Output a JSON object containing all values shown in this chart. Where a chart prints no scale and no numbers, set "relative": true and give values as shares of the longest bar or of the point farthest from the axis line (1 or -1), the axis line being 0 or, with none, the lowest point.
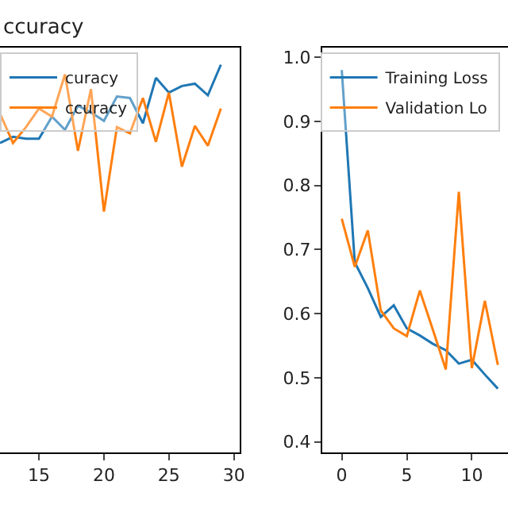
{
  "chart_data": [
    {
      "type": "line",
      "title": "ccuracy",
      "relative": true,
      "x": [
        12,
        13,
        14,
        15,
        16,
        17,
        18,
        19,
        20,
        21,
        22,
        23,
        24,
        25,
        26,
        27,
        28,
        29
      ],
      "xlim": [
        12.0,
        30.45
      ],
      "xticks": [
        15,
        20,
        25,
        30
      ],
      "tick_labels": "x",
      "legend": "top left",
      "series": [
        {
          "name": "curacy",
          "color": "#1f77b4",
          "values": [
            0.798,
            0.814,
            0.809,
            0.809,
            0.866,
            0.832,
            0.894,
            0.877,
            0.855,
            0.918,
            0.914,
            0.849,
            0.966,
            0.928,
            0.945,
            0.951,
            0.921,
            1
          ]
        },
        {
          "name": "ccuracy",
          "color": "#ff7f0e",
          "values": [
            0.874,
            0.798,
            0.839,
            0.887,
            0.866,
            0.975,
            0.778,
            0.937,
            0.621,
            0.839,
            0.823,
            0.914,
            0.801,
            0.928,
            0.737,
            0.842,
            0.791,
            0.887
          ]
        }
      ]
    },
    {
      "type": "line",
      "x": [
        0,
        1,
        2,
        3,
        4,
        5,
        6,
        7,
        8,
        9,
        10,
        11,
        12
      ],
      "xlim": [
        -1.5,
        12.78
      ],
      "xticks": [
        0,
        5,
        10
      ],
      "ylim": [
        0.3835,
        1.015
      ],
      "yticks": [
        0.4,
        0.5,
        0.6,
        0.7,
        0.8,
        0.9,
        {
          "value": 1,
          "label": "1.0"
        }
      ],
      "legend": "top",
      "series": [
        {
          "name": "Training Loss",
          "color": "#1f77b4",
          "values": [
            0.98,
            0.68,
            0.64,
            0.595,
            0.613,
            0.577,
            0.566,
            0.553,
            0.543,
            0.522,
            0.528,
            0.505,
            0.483
          ]
        },
        {
          "name": "Validation Lo",
          "color": "#ff7f0e",
          "values": [
            0.748,
            0.673,
            0.73,
            0.605,
            0.577,
            0.565,
            0.636,
            0.575,
            0.513,
            0.79,
            0.515,
            0.62,
            0.52
          ]
        }
      ]
    }
  ]
}
